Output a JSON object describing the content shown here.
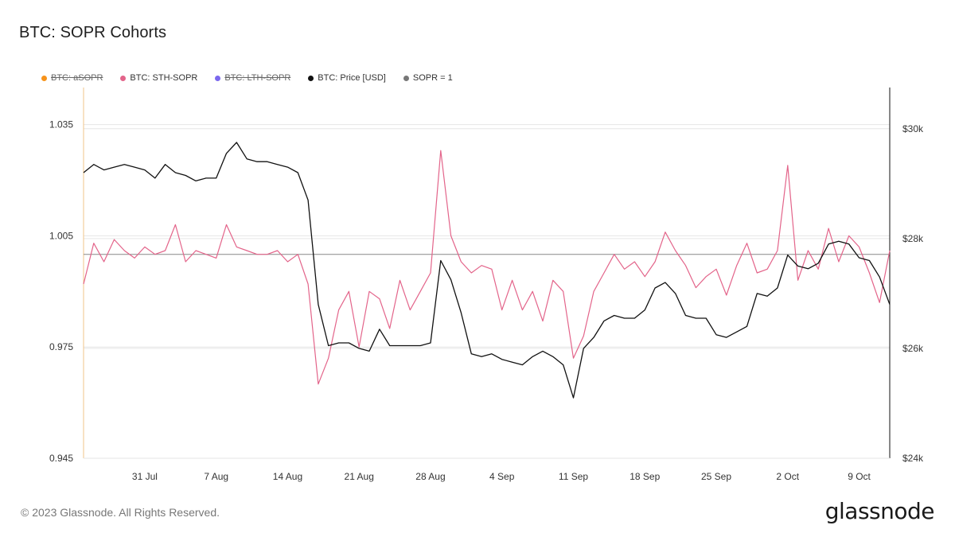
{
  "title": "BTC: SOPR Cohorts",
  "legend": [
    {
      "label": "BTC: aSOPR",
      "color": "#f7931a",
      "hidden": true
    },
    {
      "label": "BTC: STH-SOPR",
      "color": "#e3648a",
      "hidden": false
    },
    {
      "label": "BTC: LTH-SOPR",
      "color": "#7b68ee",
      "hidden": true
    },
    {
      "label": "BTC: Price [USD]",
      "color": "#111111",
      "hidden": false
    },
    {
      "label": "SOPR = 1",
      "color": "#777777",
      "hidden": false
    }
  ],
  "footer": "© 2023 Glassnode. All Rights Reserved.",
  "brand": "glassnode",
  "chart_data": {
    "type": "line",
    "x_range": [
      "2023-07-25",
      "2023-10-12"
    ],
    "x_ticks": [
      "31 Jul",
      "7 Aug",
      "14 Aug",
      "21 Aug",
      "28 Aug",
      "4 Sep",
      "11 Sep",
      "18 Sep",
      "25 Sep",
      "2 Oct",
      "9 Oct"
    ],
    "y_left": {
      "range": [
        0.945,
        1.045
      ],
      "ticks": [
        "1.035",
        "1.005",
        "0.975",
        "0.945"
      ],
      "tick_values": [
        1.035,
        1.005,
        0.975,
        0.945
      ]
    },
    "y_right": {
      "range": [
        24000,
        30750
      ],
      "ticks": [
        "$30k",
        "$28k",
        "$26k",
        "$24k"
      ],
      "tick_values": [
        30000,
        28000,
        26000,
        24000
      ]
    },
    "reference_line": {
      "label": "SOPR = 1",
      "value": 1.0
    },
    "grid": true,
    "legend_position": "top-left",
    "series": [
      {
        "name": "BTC: STH-SOPR",
        "axis": "left",
        "color": "#e3648a",
        "x": [
          "2023-07-25",
          "2023-07-26",
          "2023-07-27",
          "2023-07-28",
          "2023-07-29",
          "2023-07-30",
          "2023-07-31",
          "2023-08-01",
          "2023-08-02",
          "2023-08-03",
          "2023-08-04",
          "2023-08-05",
          "2023-08-06",
          "2023-08-07",
          "2023-08-08",
          "2023-08-09",
          "2023-08-10",
          "2023-08-11",
          "2023-08-12",
          "2023-08-13",
          "2023-08-14",
          "2023-08-15",
          "2023-08-16",
          "2023-08-17",
          "2023-08-18",
          "2023-08-19",
          "2023-08-20",
          "2023-08-21",
          "2023-08-22",
          "2023-08-23",
          "2023-08-24",
          "2023-08-25",
          "2023-08-26",
          "2023-08-27",
          "2023-08-28",
          "2023-08-29",
          "2023-08-30",
          "2023-08-31",
          "2023-09-01",
          "2023-09-02",
          "2023-09-03",
          "2023-09-04",
          "2023-09-05",
          "2023-09-06",
          "2023-09-07",
          "2023-09-08",
          "2023-09-09",
          "2023-09-10",
          "2023-09-11",
          "2023-09-12",
          "2023-09-13",
          "2023-09-14",
          "2023-09-15",
          "2023-09-16",
          "2023-09-17",
          "2023-09-18",
          "2023-09-19",
          "2023-09-20",
          "2023-09-21",
          "2023-09-22",
          "2023-09-23",
          "2023-09-24",
          "2023-09-25",
          "2023-09-26",
          "2023-09-27",
          "2023-09-28",
          "2023-09-29",
          "2023-09-30",
          "2023-10-01",
          "2023-10-02",
          "2023-10-03",
          "2023-10-04",
          "2023-10-05",
          "2023-10-06",
          "2023-10-07",
          "2023-10-08",
          "2023-10-09",
          "2023-10-10",
          "2023-10-11",
          "2023-10-12"
        ],
        "values": [
          0.992,
          1.003,
          0.998,
          1.004,
          1.001,
          0.999,
          1.002,
          1.0,
          1.001,
          1.008,
          0.998,
          1.001,
          1.0,
          0.999,
          1.008,
          1.002,
          1.001,
          1.0,
          1.0,
          1.001,
          0.998,
          1.0,
          0.992,
          0.965,
          0.972,
          0.985,
          0.99,
          0.975,
          0.99,
          0.988,
          0.98,
          0.993,
          0.985,
          0.99,
          0.995,
          1.028,
          1.005,
          0.998,
          0.995,
          0.997,
          0.996,
          0.985,
          0.993,
          0.985,
          0.99,
          0.982,
          0.993,
          0.99,
          0.972,
          0.978,
          0.99,
          0.995,
          1.0,
          0.996,
          0.998,
          0.994,
          0.998,
          1.006,
          1.001,
          0.997,
          0.991,
          0.994,
          0.996,
          0.989,
          0.997,
          1.003,
          0.995,
          0.996,
          1.001,
          1.024,
          0.993,
          1.001,
          0.996,
          1.007,
          0.998,
          1.005,
          1.002,
          0.995,
          0.987,
          1.001
        ]
      },
      {
        "name": "BTC: Price [USD]",
        "axis": "right",
        "color": "#111111",
        "x": [
          "2023-07-25",
          "2023-07-26",
          "2023-07-27",
          "2023-07-28",
          "2023-07-29",
          "2023-07-30",
          "2023-07-31",
          "2023-08-01",
          "2023-08-02",
          "2023-08-03",
          "2023-08-04",
          "2023-08-05",
          "2023-08-06",
          "2023-08-07",
          "2023-08-08",
          "2023-08-09",
          "2023-08-10",
          "2023-08-11",
          "2023-08-12",
          "2023-08-13",
          "2023-08-14",
          "2023-08-15",
          "2023-08-16",
          "2023-08-17",
          "2023-08-18",
          "2023-08-19",
          "2023-08-20",
          "2023-08-21",
          "2023-08-22",
          "2023-08-23",
          "2023-08-24",
          "2023-08-25",
          "2023-08-26",
          "2023-08-27",
          "2023-08-28",
          "2023-08-29",
          "2023-08-30",
          "2023-08-31",
          "2023-09-01",
          "2023-09-02",
          "2023-09-03",
          "2023-09-04",
          "2023-09-05",
          "2023-09-06",
          "2023-09-07",
          "2023-09-08",
          "2023-09-09",
          "2023-09-10",
          "2023-09-11",
          "2023-09-12",
          "2023-09-13",
          "2023-09-14",
          "2023-09-15",
          "2023-09-16",
          "2023-09-17",
          "2023-09-18",
          "2023-09-19",
          "2023-09-20",
          "2023-09-21",
          "2023-09-22",
          "2023-09-23",
          "2023-09-24",
          "2023-09-25",
          "2023-09-26",
          "2023-09-27",
          "2023-09-28",
          "2023-09-29",
          "2023-09-30",
          "2023-10-01",
          "2023-10-02",
          "2023-10-03",
          "2023-10-04",
          "2023-10-05",
          "2023-10-06",
          "2023-10-07",
          "2023-10-08",
          "2023-10-09",
          "2023-10-10",
          "2023-10-11",
          "2023-10-12"
        ],
        "values": [
          29200,
          29350,
          29250,
          29300,
          29350,
          29300,
          29250,
          29100,
          29350,
          29200,
          29150,
          29050,
          29100,
          29100,
          29550,
          29750,
          29450,
          29400,
          29400,
          29350,
          29300,
          29200,
          28700,
          26800,
          26050,
          26100,
          26100,
          26000,
          25950,
          26350,
          26050,
          26050,
          26050,
          26050,
          26100,
          27600,
          27250,
          26650,
          25900,
          25850,
          25900,
          25800,
          25750,
          25700,
          25850,
          25950,
          25850,
          25700,
          25100,
          26000,
          26200,
          26500,
          26600,
          26550,
          26550,
          26700,
          27100,
          27200,
          27000,
          26600,
          26550,
          26550,
          26250,
          26200,
          26300,
          26400,
          27000,
          26950,
          27100,
          27700,
          27500,
          27450,
          27550,
          27900,
          27950,
          27900,
          27650,
          27600,
          27300,
          26800
        ]
      }
    ]
  }
}
